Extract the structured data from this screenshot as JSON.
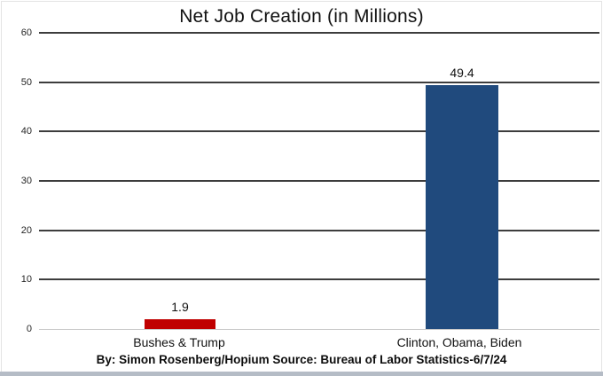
{
  "chart_data": {
    "type": "bar",
    "title": "Net Job Creation (in Millions)",
    "categories": [
      "Bushes & Trump",
      "Clinton, Obama, Biden"
    ],
    "values": [
      1.9,
      49.4
    ],
    "data_labels": [
      "1.9",
      "49.4"
    ],
    "bar_colors": [
      "#c00000",
      "#204a7d"
    ],
    "ylim": [
      0,
      60
    ],
    "yticks": [
      0,
      10,
      20,
      30,
      40,
      50,
      60
    ],
    "grid": "horizontal-dark",
    "legend": "none",
    "footer": "By: Simon Rosenberg/Hopium Source: Bureau of Labor Statistics-6/7/24"
  },
  "colors": {
    "gridline": "#3d3d3d",
    "zero_line": "#c9c9c9",
    "background": "#ffffff",
    "bottom_strip": "#b5bcc6"
  }
}
